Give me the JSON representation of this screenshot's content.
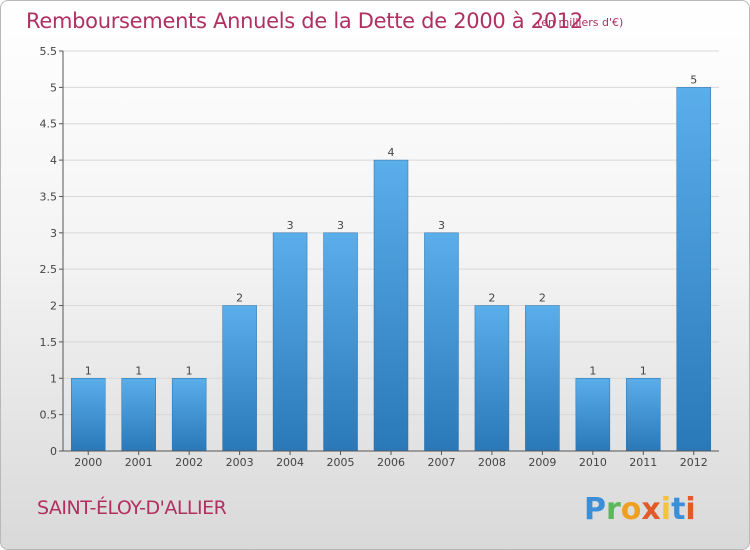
{
  "header": {
    "title": "Remboursements Annuels de la Dette de 2000 à 2012",
    "unit": "(en milliers d'€)"
  },
  "footer": {
    "commune": "SAINT-ÉLOY-D'ALLIER",
    "logo_text": "Proxiti"
  },
  "colors": {
    "title": "#b03060",
    "bar_top": "#5aaeea",
    "bar_bottom": "#2a78b8",
    "gridline": "#d8d8d8"
  },
  "chart_data": {
    "type": "bar",
    "categories": [
      "2000",
      "2001",
      "2002",
      "2003",
      "2004",
      "2005",
      "2006",
      "2007",
      "2008",
      "2009",
      "2010",
      "2011",
      "2012"
    ],
    "values": [
      1,
      1,
      1,
      2,
      3,
      3,
      4,
      3,
      2,
      2,
      1,
      1,
      5
    ],
    "data_labels": [
      "1",
      "1",
      "1",
      "2",
      "3",
      "3",
      "4",
      "3",
      "2",
      "2",
      "1",
      "1",
      "5"
    ],
    "y_ticks": [
      0,
      0.5,
      1,
      1.5,
      2,
      2.5,
      3,
      3.5,
      4,
      4.5,
      5,
      5.5
    ],
    "y_tick_labels": [
      "0",
      "0.5",
      "1",
      "1.5",
      "2",
      "2.5",
      "3",
      "3.5",
      "4",
      "4.5",
      "5",
      "5.5"
    ],
    "ylim": [
      0,
      5.5
    ],
    "grid": true,
    "legend": "none"
  }
}
